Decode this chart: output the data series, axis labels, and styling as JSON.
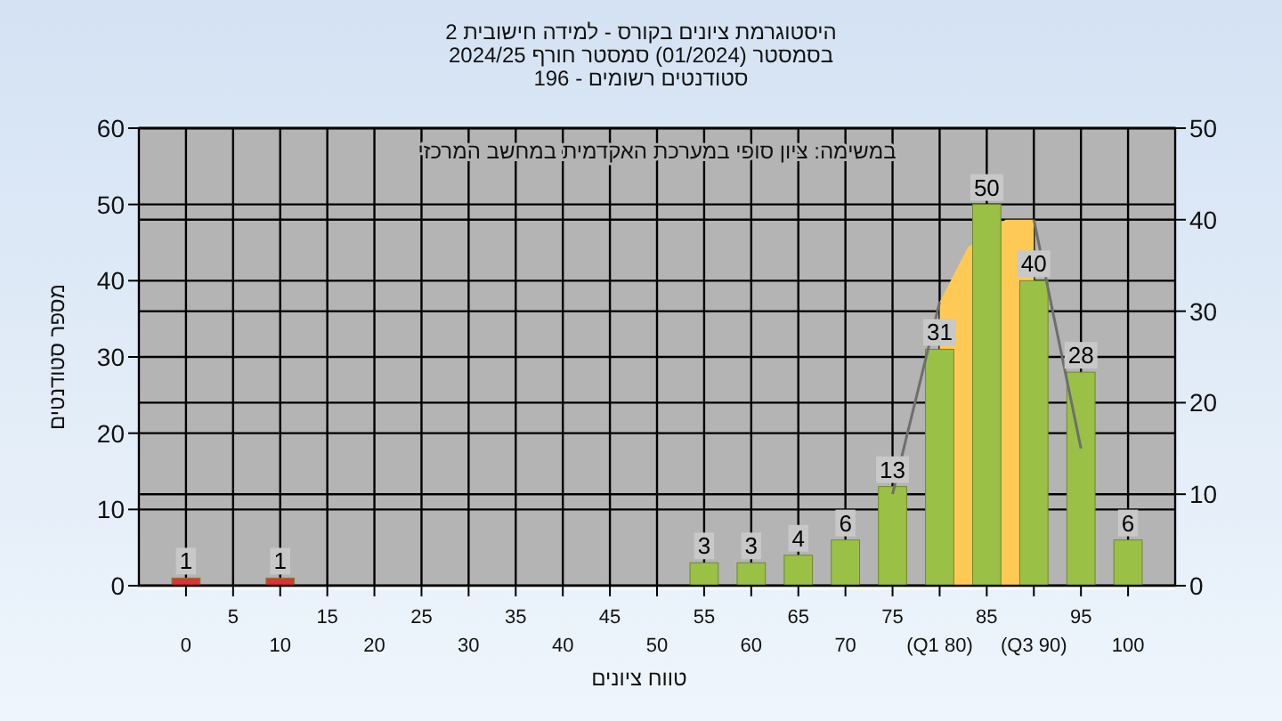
{
  "chart_data": {
    "type": "bar",
    "title": "היסטוגרמת ציונים בקורס - למידה חישובית 2",
    "subtitle": "בסמסטר  (01/2024)  סמסטר חורף 2024/25\nסטודנטים רשומים - 196",
    "xlabel": "טווח ציונים",
    "ylabel": "מספר סטודנטים",
    "annotations": [
      "במשימה: ציון סופי במערכת האקדמית במחשב המרכזי"
    ],
    "xlim": [
      -5,
      105
    ],
    "xticks": [
      0,
      10,
      20,
      30,
      40,
      50,
      60,
      70,
      {
        "value": 80,
        "label": "(Q1 80)"
      },
      {
        "value": 90,
        "label": "(Q3 90)"
      },
      100
    ],
    "x2lim": [
      -5,
      105
    ],
    "x2ticks": [
      5,
      15,
      25,
      35,
      45,
      55,
      65,
      75,
      85,
      95
    ],
    "ylim": [
      0,
      60
    ],
    "yticks": [
      0,
      10,
      20,
      30,
      40,
      50,
      60
    ],
    "y2lim": [
      0,
      50
    ],
    "y2ticks": [
      0,
      10,
      20,
      30,
      40,
      50
    ],
    "grid": true,
    "series": [
      {
        "type": "area",
        "axis": "y2",
        "color": "#ffc955",
        "x": [
          80,
          83,
          87,
          90
        ],
        "values": [
          31,
          37,
          40,
          40
        ]
      },
      {
        "x": [
          0,
          10,
          55,
          60,
          65,
          70,
          75,
          80,
          85,
          90,
          95,
          100
        ],
        "values": [
          1,
          1,
          3,
          3,
          4,
          6,
          13,
          31,
          50,
          40,
          28,
          6
        ],
        "value_labels": [
          "1",
          "1",
          "3",
          "3",
          "4",
          "6",
          "13",
          "31",
          "50",
          "40",
          "28",
          "6"
        ],
        "colors": [
          "#e0303a",
          "#e0303a",
          "#9ac046",
          "#9ac046",
          "#9ac046",
          "#9ac046",
          "#9ac046",
          "#9ac046",
          "#9ac046",
          "#9ac046",
          "#9ac046",
          "#9ac046"
        ]
      },
      {
        "type": "line",
        "axis": "y2",
        "color": "#6e6e6e",
        "x": [
          75,
          80,
          85,
          90,
          95
        ],
        "values": [
          10,
          31,
          null,
          40,
          15
        ]
      }
    ]
  }
}
